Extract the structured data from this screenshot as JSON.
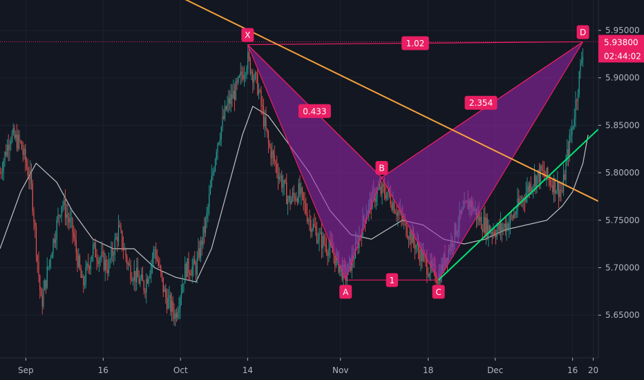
{
  "chart_data": {
    "type": "candlestick",
    "title": "",
    "xlabel": "",
    "ylabel": "",
    "ylim": [
      5.605,
      5.982
    ],
    "x_range_days": [
      "Aug 27",
      "Dec 21"
    ],
    "x_ticks": [
      {
        "label": "Sep",
        "date": "Sep 1"
      },
      {
        "label": "16",
        "date": "Sep 16"
      },
      {
        "label": "Oct",
        "date": "Oct 1"
      },
      {
        "label": "14",
        "date": "Oct 14"
      },
      {
        "label": "Nov",
        "date": "Nov 1"
      },
      {
        "label": "18",
        "date": "Nov 18"
      },
      {
        "label": "Dec",
        "date": "Dec 1"
      },
      {
        "label": "16",
        "date": "Dec 16"
      },
      {
        "label": "20",
        "date": "Dec 20"
      }
    ],
    "y_ticks": [
      "5.65000",
      "5.70000",
      "5.75000",
      "5.80000",
      "5.85000",
      "5.90000",
      "5.95000"
    ],
    "current_price": {
      "value": 5.938,
      "label": "5.93800",
      "countdown": "02:44:02",
      "color": "#e91e63"
    },
    "colors": {
      "up": "#26a69a",
      "down": "#ef5350",
      "pattern_fill": "#9c27b0",
      "pattern_line": "#e91e63",
      "resistance": "#f7a23b",
      "support": "#00e676",
      "ma": "#e0e0e0"
    },
    "harmonic_pattern": {
      "points": [
        {
          "label": "X",
          "date": "Oct 14",
          "price": 5.935
        },
        {
          "label": "A",
          "date": "Nov 2",
          "price": 5.687
        },
        {
          "label": "B",
          "date": "Nov 9",
          "price": 5.795
        },
        {
          "label": "C",
          "date": "Nov 20",
          "price": 5.687
        },
        {
          "label": "D",
          "date": "Dec 18",
          "price": 5.938
        }
      ],
      "ratios": [
        {
          "label": "0.433",
          "between": "XB"
        },
        {
          "label": "1",
          "between": "AC"
        },
        {
          "label": "2.354",
          "between": "BD"
        },
        {
          "label": "1.02",
          "between": "XD"
        }
      ]
    },
    "trendlines": [
      {
        "name": "resistance",
        "points": [
          {
            "date": "Aug 30",
            "price": 6.07
          },
          {
            "date": "Dec 21",
            "price": 5.77
          }
        ]
      },
      {
        "name": "support",
        "points": [
          {
            "date": "Nov 20",
            "price": 5.687
          },
          {
            "date": "Dec 21",
            "price": 5.846
          }
        ]
      }
    ],
    "moving_average": [
      {
        "date": "Aug 27",
        "price": 5.72
      },
      {
        "date": "Aug 31",
        "price": 5.78
      },
      {
        "date": "Sep 3",
        "price": 5.81
      },
      {
        "date": "Sep 7",
        "price": 5.79
      },
      {
        "date": "Sep 10",
        "price": 5.76
      },
      {
        "date": "Sep 14",
        "price": 5.73
      },
      {
        "date": "Sep 18",
        "price": 5.72
      },
      {
        "date": "Sep 22",
        "price": 5.72
      },
      {
        "date": "Sep 26",
        "price": 5.7
      },
      {
        "date": "Sep 30",
        "price": 5.69
      },
      {
        "date": "Oct 4",
        "price": 5.685
      },
      {
        "date": "Oct 7",
        "price": 5.72
      },
      {
        "date": "Oct 10",
        "price": 5.78
      },
      {
        "date": "Oct 13",
        "price": 5.84
      },
      {
        "date": "Oct 15",
        "price": 5.87
      },
      {
        "date": "Oct 18",
        "price": 5.86
      },
      {
        "date": "Oct 22",
        "price": 5.83
      },
      {
        "date": "Oct 26",
        "price": 5.8
      },
      {
        "date": "Oct 30",
        "price": 5.76
      },
      {
        "date": "Nov 3",
        "price": 5.735
      },
      {
        "date": "Nov 7",
        "price": 5.73
      },
      {
        "date": "Nov 10",
        "price": 5.74
      },
      {
        "date": "Nov 13",
        "price": 5.75
      },
      {
        "date": "Nov 17",
        "price": 5.745
      },
      {
        "date": "Nov 21",
        "price": 5.73
      },
      {
        "date": "Nov 25",
        "price": 5.725
      },
      {
        "date": "Nov 29",
        "price": 5.73
      },
      {
        "date": "Dec 3",
        "price": 5.74
      },
      {
        "date": "Dec 7",
        "price": 5.745
      },
      {
        "date": "Dec 11",
        "price": 5.75
      },
      {
        "date": "Dec 14",
        "price": 5.765
      },
      {
        "date": "Dec 16",
        "price": 5.78
      },
      {
        "date": "Dec 18",
        "price": 5.81
      },
      {
        "date": "Dec 19",
        "price": 5.84
      }
    ],
    "price_path": [
      {
        "date": "Aug 27",
        "price": 5.8
      },
      {
        "date": "Aug 29",
        "price": 5.84
      },
      {
        "date": "Aug 31",
        "price": 5.83
      },
      {
        "date": "Sep 2",
        "price": 5.79
      },
      {
        "date": "Sep 4",
        "price": 5.66
      },
      {
        "date": "Sep 6",
        "price": 5.72
      },
      {
        "date": "Sep 8",
        "price": 5.77
      },
      {
        "date": "Sep 10",
        "price": 5.74
      },
      {
        "date": "Sep 12",
        "price": 5.68
      },
      {
        "date": "Sep 14",
        "price": 5.72
      },
      {
        "date": "Sep 17",
        "price": 5.7
      },
      {
        "date": "Sep 19",
        "price": 5.74
      },
      {
        "date": "Sep 21",
        "price": 5.7
      },
      {
        "date": "Sep 24",
        "price": 5.68
      },
      {
        "date": "Sep 26",
        "price": 5.72
      },
      {
        "date": "Sep 28",
        "price": 5.67
      },
      {
        "date": "Sep 30",
        "price": 5.65
      },
      {
        "date": "Oct 2",
        "price": 5.7
      },
      {
        "date": "Oct 4",
        "price": 5.7
      },
      {
        "date": "Oct 6",
        "price": 5.75
      },
      {
        "date": "Oct 8",
        "price": 5.83
      },
      {
        "date": "Oct 10",
        "price": 5.87
      },
      {
        "date": "Oct 12",
        "price": 5.89
      },
      {
        "date": "Oct 14",
        "price": 5.92
      },
      {
        "date": "Oct 16",
        "price": 5.89
      },
      {
        "date": "Oct 18",
        "price": 5.83
      },
      {
        "date": "Oct 20",
        "price": 5.8
      },
      {
        "date": "Oct 22",
        "price": 5.77
      },
      {
        "date": "Oct 24",
        "price": 5.78
      },
      {
        "date": "Oct 26",
        "price": 5.75
      },
      {
        "date": "Oct 28",
        "price": 5.73
      },
      {
        "date": "Oct 30",
        "price": 5.72
      },
      {
        "date": "Nov 2",
        "price": 5.69
      },
      {
        "date": "Nov 4",
        "price": 5.72
      },
      {
        "date": "Nov 6",
        "price": 5.76
      },
      {
        "date": "Nov 8",
        "price": 5.78
      },
      {
        "date": "Nov 10",
        "price": 5.78
      },
      {
        "date": "Nov 12",
        "price": 5.76
      },
      {
        "date": "Nov 14",
        "price": 5.74
      },
      {
        "date": "Nov 16",
        "price": 5.72
      },
      {
        "date": "Nov 18",
        "price": 5.7
      },
      {
        "date": "Nov 20",
        "price": 5.69
      },
      {
        "date": "Nov 22",
        "price": 5.72
      },
      {
        "date": "Nov 24",
        "price": 5.75
      },
      {
        "date": "Nov 26",
        "price": 5.77
      },
      {
        "date": "Nov 28",
        "price": 5.75
      },
      {
        "date": "Nov 30",
        "price": 5.74
      },
      {
        "date": "Dec 2",
        "price": 5.74
      },
      {
        "date": "Dec 4",
        "price": 5.75
      },
      {
        "date": "Dec 6",
        "price": 5.77
      },
      {
        "date": "Dec 8",
        "price": 5.79
      },
      {
        "date": "Dec 10",
        "price": 5.8
      },
      {
        "date": "Dec 12",
        "price": 5.79
      },
      {
        "date": "Dec 14",
        "price": 5.78
      },
      {
        "date": "Dec 15",
        "price": 5.82
      },
      {
        "date": "Dec 16",
        "price": 5.85
      },
      {
        "date": "Dec 17",
        "price": 5.89
      },
      {
        "date": "Dec 18",
        "price": 5.93
      }
    ]
  }
}
